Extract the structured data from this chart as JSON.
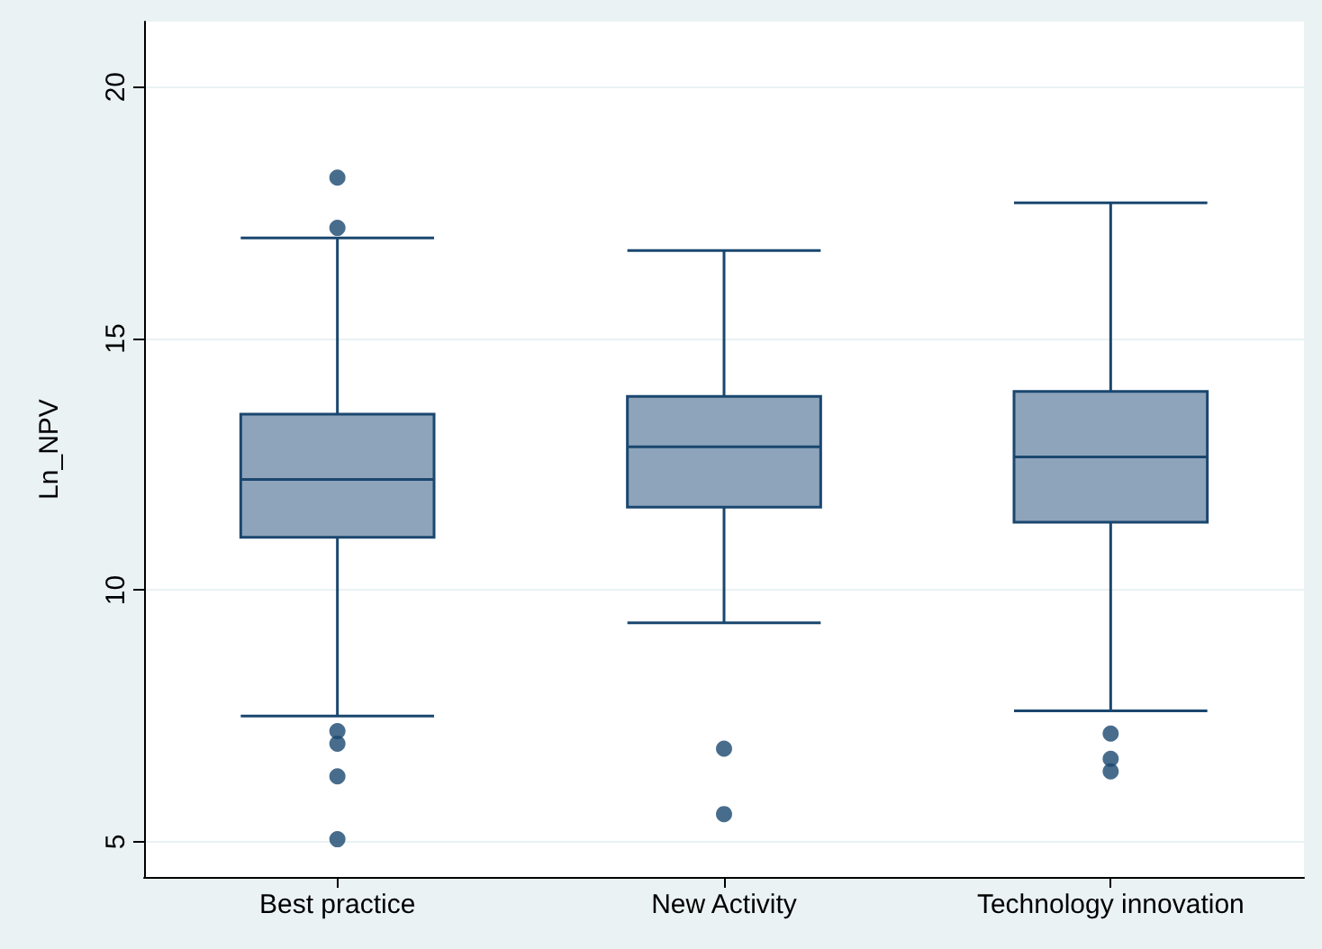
{
  "chart_data": {
    "type": "box",
    "ylabel": "Ln_NPV",
    "categories": [
      "Best practice",
      "New Activity",
      "Technology innovation"
    ],
    "boxes": [
      {
        "low": 7.5,
        "q1": 11.05,
        "median": 12.2,
        "q3": 13.5,
        "high": 17.0,
        "outliers": [
          18.2,
          17.2,
          7.2,
          6.95,
          6.3,
          5.05
        ]
      },
      {
        "low": 9.35,
        "q1": 11.65,
        "median": 12.85,
        "q3": 13.85,
        "high": 16.75,
        "outliers": [
          6.85,
          5.55
        ]
      },
      {
        "low": 7.6,
        "q1": 11.35,
        "median": 12.65,
        "q3": 13.95,
        "high": 17.7,
        "outliers": [
          7.15,
          6.65,
          6.4
        ]
      }
    ],
    "color": "#8ea4bb",
    "ylim": [
      4.3,
      21.3
    ],
    "yticks": [
      5,
      10,
      15,
      20
    ],
    "grid": "y"
  }
}
